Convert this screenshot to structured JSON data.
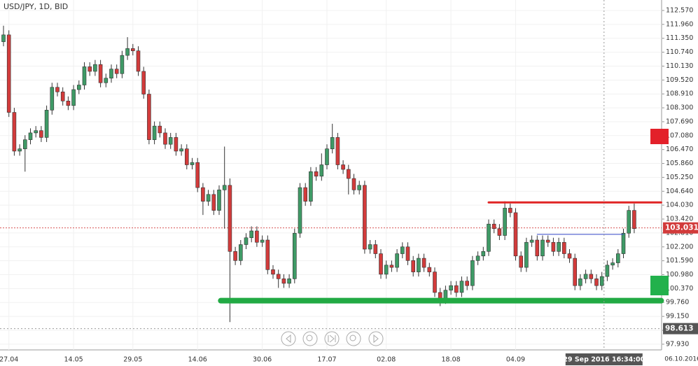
{
  "chart_data": {
    "type": "candlestick",
    "title": "USD/JPY, 1D, BID",
    "categories": [
      null,
      "27.04",
      null,
      null,
      null,
      null,
      null,
      null,
      null,
      null,
      null,
      null,
      null,
      "14.05",
      null,
      null,
      null,
      null,
      null,
      null,
      null,
      null,
      null,
      null,
      "29.05",
      null,
      null,
      null,
      null,
      null,
      null,
      null,
      null,
      null,
      null,
      null,
      "14.06",
      null,
      null,
      null,
      null,
      null,
      null,
      null,
      null,
      null,
      null,
      null,
      "30.06",
      null,
      null,
      null,
      null,
      null,
      null,
      null,
      null,
      null,
      null,
      null,
      "17.07",
      null,
      null,
      null,
      null,
      null,
      null,
      null,
      null,
      null,
      null,
      "02.08",
      null,
      null,
      null,
      null,
      null,
      null,
      null,
      null,
      null,
      null,
      null,
      "18.08",
      null,
      null,
      null,
      null,
      null,
      null,
      null,
      null,
      null,
      null,
      null,
      "04.09",
      null,
      null,
      null,
      null,
      null,
      null,
      null,
      null,
      null,
      null,
      null,
      null,
      null,
      null,
      null,
      null,
      null,
      null,
      null,
      null,
      null,
      null
    ],
    "open": [
      111.2,
      111.5,
      108.1,
      106.4,
      106.5,
      106.9,
      107.2,
      107.3,
      107.0,
      108.2,
      109.2,
      109.0,
      108.6,
      108.4,
      109.1,
      109.3,
      110.1,
      109.9,
      110.2,
      109.4,
      109.6,
      110.0,
      109.8,
      110.6,
      110.9,
      110.8,
      109.9,
      108.9,
      106.9,
      107.5,
      107.2,
      106.7,
      107.0,
      106.4,
      106.5,
      105.8,
      105.9,
      104.8,
      104.2,
      104.5,
      103.8,
      104.7,
      104.9,
      102.0,
      101.6,
      102.3,
      102.6,
      102.9,
      102.4,
      102.5,
      101.2,
      101.0,
      100.8,
      100.6,
      100.8,
      102.8,
      104.8,
      104.2,
      105.5,
      105.3,
      105.8,
      106.5,
      107.0,
      105.8,
      105.6,
      105.2,
      104.7,
      104.9,
      102.1,
      102.3,
      101.9,
      101.0,
      101.4,
      101.3,
      101.9,
      102.2,
      101.6,
      101.1,
      101.7,
      101.3,
      101.1,
      100.2,
      99.9,
      100.3,
      100.5,
      100.2,
      100.7,
      100.5,
      101.6,
      101.8,
      102.0,
      103.2,
      103.0,
      102.7,
      103.9,
      103.7,
      101.8,
      101.3,
      102.4,
      102.5,
      101.8,
      102.5,
      102.4,
      102.0,
      102.4,
      101.9,
      101.7,
      100.5,
      100.8,
      101.0,
      100.8,
      100.5,
      100.9,
      101.4,
      101.5,
      101.9,
      102.8,
      103.8
    ],
    "high": [
      111.9,
      111.7,
      108.3,
      106.7,
      107.1,
      107.4,
      107.5,
      107.5,
      108.4,
      109.4,
      109.4,
      109.2,
      108.8,
      109.3,
      109.5,
      110.3,
      110.3,
      110.4,
      110.4,
      109.8,
      110.2,
      110.2,
      110.8,
      111.4,
      111.1,
      111.0,
      110.1,
      109.1,
      107.7,
      107.7,
      107.4,
      107.2,
      107.2,
      106.7,
      106.7,
      106.1,
      106.1,
      105.0,
      104.7,
      104.7,
      104.9,
      106.6,
      105.2,
      102.2,
      102.5,
      102.8,
      103.1,
      103.1,
      102.7,
      102.7,
      101.4,
      101.2,
      101.0,
      101.0,
      103.0,
      105.0,
      105.0,
      105.7,
      105.7,
      106.3,
      106.7,
      107.6,
      107.2,
      106.0,
      105.8,
      105.4,
      105.1,
      105.1,
      102.5,
      102.5,
      102.1,
      101.6,
      101.6,
      102.1,
      102.4,
      102.4,
      101.8,
      101.9,
      101.9,
      101.5,
      101.3,
      100.4,
      100.5,
      100.7,
      100.7,
      100.9,
      100.9,
      101.8,
      102.0,
      102.2,
      103.4,
      103.4,
      103.2,
      104.2,
      104.1,
      103.9,
      102.0,
      102.6,
      102.7,
      102.7,
      102.7,
      102.7,
      102.6,
      102.6,
      102.6,
      102.1,
      101.9,
      101.0,
      101.2,
      101.2,
      101.0,
      101.1,
      101.6,
      101.7,
      102.1,
      103.0,
      104.0,
      104.1
    ],
    "low": [
      111.0,
      107.9,
      106.2,
      106.2,
      105.5,
      106.7,
      107.0,
      106.8,
      106.8,
      108.0,
      108.8,
      108.4,
      108.2,
      108.2,
      108.9,
      109.1,
      109.7,
      109.7,
      109.2,
      109.2,
      109.4,
      109.6,
      109.6,
      110.4,
      110.6,
      109.7,
      108.7,
      106.7,
      106.7,
      107.0,
      106.5,
      106.5,
      106.2,
      106.2,
      105.6,
      105.6,
      104.6,
      103.6,
      104.0,
      103.6,
      103.6,
      103.0,
      98.9,
      101.4,
      101.4,
      102.1,
      102.4,
      102.2,
      102.2,
      101.0,
      100.8,
      100.4,
      100.4,
      100.4,
      100.6,
      102.6,
      104.0,
      104.0,
      105.1,
      105.1,
      105.6,
      106.3,
      105.6,
      105.4,
      104.5,
      104.5,
      104.5,
      101.9,
      101.9,
      101.7,
      100.8,
      100.8,
      101.1,
      101.1,
      101.7,
      101.4,
      100.9,
      100.9,
      101.1,
      100.9,
      100.0,
      99.6,
      99.7,
      100.1,
      100.0,
      100.0,
      100.3,
      100.3,
      101.4,
      101.6,
      101.8,
      102.8,
      102.5,
      102.5,
      103.5,
      101.6,
      101.1,
      101.1,
      102.2,
      101.6,
      101.6,
      102.2,
      101.8,
      101.8,
      101.7,
      101.5,
      100.3,
      100.3,
      100.6,
      100.6,
      100.3,
      100.3,
      100.7,
      101.2,
      101.3,
      101.7,
      102.6,
      102.8
    ],
    "close": [
      111.5,
      108.1,
      106.4,
      106.5,
      106.9,
      107.2,
      107.3,
      107.0,
      108.2,
      109.2,
      109.0,
      108.6,
      108.4,
      109.1,
      109.3,
      110.1,
      109.9,
      110.2,
      109.4,
      109.6,
      110.0,
      109.8,
      110.6,
      110.9,
      110.8,
      109.9,
      108.9,
      106.9,
      107.5,
      107.2,
      106.7,
      107.0,
      106.4,
      106.5,
      105.8,
      105.9,
      104.8,
      104.2,
      104.5,
      103.8,
      104.7,
      104.9,
      102.0,
      101.6,
      102.3,
      102.6,
      102.9,
      102.4,
      102.5,
      101.2,
      101.0,
      100.8,
      100.6,
      100.8,
      102.8,
      104.8,
      104.2,
      105.5,
      105.3,
      105.8,
      106.5,
      107.0,
      105.8,
      105.6,
      105.2,
      104.7,
      104.9,
      102.1,
      102.3,
      101.9,
      101.0,
      101.4,
      101.3,
      101.9,
      102.2,
      101.6,
      101.1,
      101.7,
      101.3,
      101.1,
      100.2,
      99.9,
      100.3,
      100.5,
      100.2,
      100.7,
      100.5,
      101.6,
      101.8,
      102.0,
      103.2,
      103.0,
      102.7,
      103.9,
      103.7,
      101.8,
      101.3,
      102.4,
      102.5,
      101.8,
      102.5,
      102.4,
      102.0,
      102.4,
      101.9,
      101.7,
      100.5,
      100.8,
      101.0,
      100.8,
      100.5,
      100.9,
      101.4,
      101.5,
      101.9,
      102.8,
      103.8,
      103.0
    ],
    "up_color": "#3f9a66",
    "down_color": "#d23b3b",
    "ylim": [
      97.68,
      113.03
    ],
    "yticks": [
      {
        "value": 112.57,
        "label": "112.570"
      },
      {
        "value": 111.96,
        "label": "111.960"
      },
      {
        "value": 111.35,
        "label": "111.350"
      },
      {
        "value": 110.74,
        "label": "110.740"
      },
      {
        "value": 110.13,
        "label": "110.130"
      },
      {
        "value": 109.52,
        "label": "109.520"
      },
      {
        "value": 108.91,
        "label": "108.910"
      },
      {
        "value": 108.3,
        "label": "108.300"
      },
      {
        "value": 107.69,
        "label": "107.690"
      },
      {
        "value": 107.08,
        "label": "107.080"
      },
      {
        "value": 106.47,
        "label": "106.470"
      },
      {
        "value": 105.86,
        "label": "105.860"
      },
      {
        "value": 105.25,
        "label": "105.250"
      },
      {
        "value": 104.64,
        "label": "104.640"
      },
      {
        "value": 104.03,
        "label": "104.030"
      },
      {
        "value": 103.42,
        "label": "103.420"
      },
      {
        "value": 102.81,
        "label": "102.810"
      },
      {
        "value": 102.2,
        "label": "102.200"
      },
      {
        "value": 101.59,
        "label": "101.590"
      },
      {
        "value": 100.98,
        "label": "100.980"
      },
      {
        "value": 100.37,
        "label": "100.370"
      },
      {
        "value": 99.76,
        "label": "99.760"
      },
      {
        "value": 99.15,
        "label": "99.150"
      },
      {
        "value": 98.54,
        "label": "98.540"
      },
      {
        "value": 97.93,
        "label": "97.930"
      }
    ],
    "grid": true,
    "levels": [
      {
        "value": 104.15,
        "x": [
          90,
          122
        ],
        "color": "#e02424",
        "width": 3
      },
      {
        "value": 102.75,
        "x": [
          99,
          115
        ],
        "color": "#3346c8",
        "width": 1
      },
      {
        "value": 99.84,
        "x": [
          40.3,
          122
        ],
        "color": "#22aa44",
        "width": 8
      }
    ],
    "last_price": 103.031,
    "crosshair": {
      "x": 111.4,
      "price": 98.613,
      "x_label": "29 Sep 2016 16:34:00"
    },
    "end_date": "06.10.2016"
  }
}
